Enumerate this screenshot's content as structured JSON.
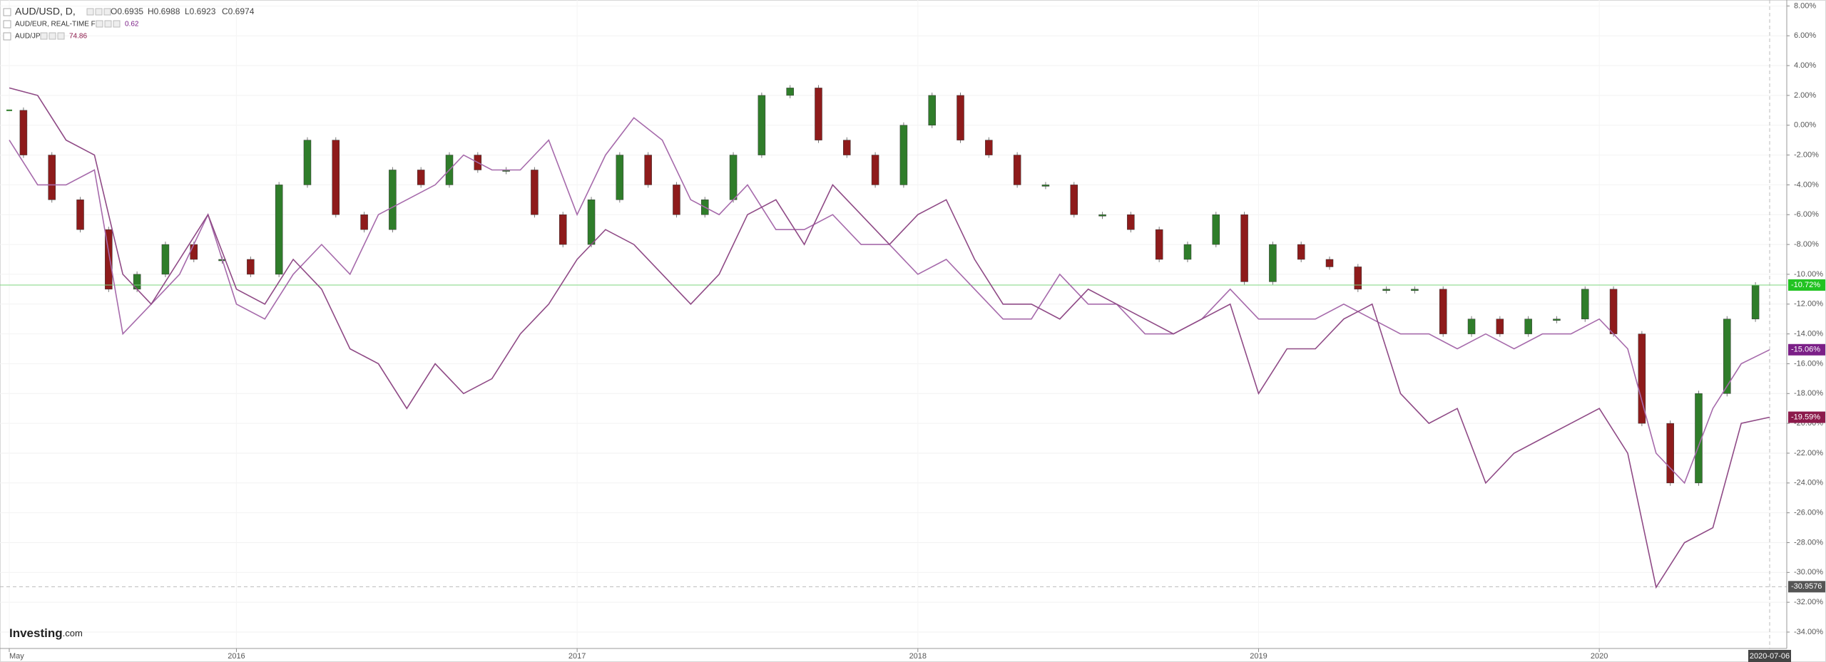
{
  "chart_data": {
    "type": "line",
    "brand": [
      "Investing",
      ".com"
    ],
    "x": [
      "2015-05",
      "2015-06",
      "2015-07",
      "2015-08",
      "2015-09",
      "2015-10",
      "2015-11",
      "2015-12",
      "2016-01",
      "2016-02",
      "2016-03",
      "2016-04",
      "2016-05",
      "2016-06",
      "2016-07",
      "2016-08",
      "2016-09",
      "2016-10",
      "2016-11",
      "2016-12",
      "2017-01",
      "2017-02",
      "2017-03",
      "2017-04",
      "2017-05",
      "2017-06",
      "2017-07",
      "2017-08",
      "2017-09",
      "2017-10",
      "2017-11",
      "2017-12",
      "2018-01",
      "2018-02",
      "2018-03",
      "2018-04",
      "2018-05",
      "2018-06",
      "2018-07",
      "2018-08",
      "2018-09",
      "2018-10",
      "2018-11",
      "2018-12",
      "2019-01",
      "2019-02",
      "2019-03",
      "2019-04",
      "2019-05",
      "2019-06",
      "2019-07",
      "2019-08",
      "2019-09",
      "2019-10",
      "2019-11",
      "2019-12",
      "2020-01",
      "2020-02",
      "2020-03",
      "2020-04",
      "2020-05",
      "2020-06",
      "2020-07"
    ],
    "xlim": [
      "2015-05",
      "2020-07"
    ],
    "xticks": [
      {
        "value": "2015-05",
        "label": "May"
      },
      {
        "value": "2016-01",
        "label": "2016"
      },
      {
        "value": "2017-01",
        "label": "2017"
      },
      {
        "value": "2018-01",
        "label": "2018"
      },
      {
        "value": "2019-01",
        "label": "2019"
      },
      {
        "value": "2020-01",
        "label": "2020"
      }
    ],
    "crosshair_x": {
      "value": "2020-07",
      "label": "2020-07-06"
    },
    "crosshair_y": -30.9576,
    "ylim": [
      -35.1,
      8.4
    ],
    "yticks": [
      {
        "value": 8,
        "label": "8.00%"
      },
      {
        "value": 6,
        "label": "6.00%"
      },
      {
        "value": 4,
        "label": "4.00%"
      },
      {
        "value": 2,
        "label": "2.00%"
      },
      {
        "value": 0,
        "label": "0.00%"
      },
      {
        "value": -2,
        "label": "-2.00%"
      },
      {
        "value": -4,
        "label": "-4.00%"
      },
      {
        "value": -6,
        "label": "-6.00%"
      },
      {
        "value": -8,
        "label": "-8.00%"
      },
      {
        "value": -10,
        "label": "-10.00%"
      },
      {
        "value": -12,
        "label": "-12.00%"
      },
      {
        "value": -14,
        "label": "-14.00%"
      },
      {
        "value": -16,
        "label": "-16.00%"
      },
      {
        "value": -18,
        "label": "-18.00%"
      },
      {
        "value": -20,
        "label": "-20.00%"
      },
      {
        "value": -22,
        "label": "-22.00%"
      },
      {
        "value": -24,
        "label": "-24.00%"
      },
      {
        "value": -26,
        "label": "-26.00%"
      },
      {
        "value": -28,
        "label": "-28.00%"
      },
      {
        "value": -30,
        "label": "-30.00%"
      },
      {
        "value": -32,
        "label": "-32.00%"
      },
      {
        "value": -34,
        "label": "-34.00%"
      }
    ],
    "grid": true,
    "series": [
      {
        "name": "AUD/USD, D,",
        "style": "candlestick",
        "color": "#2f7d2a",
        "down_color": "#8e1b1b",
        "label_color": "#22c322",
        "ohlc_labels": [
          "O0.6935",
          "H0.6988",
          "L0.6923",
          "C0.6974"
        ],
        "last_label": "-10.72%",
        "values": [
          1,
          -2,
          -5,
          -7,
          -11,
          -10,
          -8,
          -9,
          -9,
          -10,
          -4,
          -1,
          -6,
          -7,
          -3,
          -4,
          -2,
          -3,
          -3,
          -6,
          -8,
          -5,
          -2,
          -4,
          -6,
          -5,
          -2,
          2,
          2.5,
          -1,
          -2,
          -4,
          0,
          2,
          -1,
          -2,
          -4,
          -4,
          -6,
          -6,
          -7,
          -9,
          -8,
          -6,
          -10.5,
          -8,
          -9,
          -9.5,
          -11,
          -11,
          -11,
          -14,
          -13,
          -14,
          -13,
          -13,
          -11,
          -14,
          -20,
          -24,
          -18,
          -13,
          -10.72
        ]
      },
      {
        "name": "AUD/EUR, REAL-TIME FX",
        "style": "line",
        "color": "#a66aab",
        "label_color": "#7b1f87",
        "legend_value": "0.62",
        "last_label": "-15.06%",
        "values": [
          -1,
          -4,
          -4,
          -3,
          -14,
          -12,
          -10,
          -6,
          -12,
          -13,
          -10,
          -8,
          -10,
          -6,
          -5,
          -4,
          -2,
          -3,
          -3,
          -1,
          -6,
          -2,
          0.5,
          -1,
          -5,
          -6,
          -4,
          -7,
          -7,
          -6,
          -8,
          -8,
          -10,
          -9,
          -11,
          -13,
          -13,
          -10,
          -12,
          -12,
          -14,
          -14,
          -13,
          -11,
          -13,
          -13,
          -13,
          -12,
          -13,
          -14,
          -14,
          -15,
          -14,
          -15,
          -14,
          -14,
          -13,
          -15,
          -22,
          -24,
          -19,
          -16,
          -15.06
        ]
      },
      {
        "name": "AUD/JPY,",
        "style": "line",
        "color": "#8f4a86",
        "label_color": "#8c1a4b",
        "legend_value": "74.86",
        "last_label": "-19.59%",
        "values": [
          2.5,
          2,
          -1,
          -2,
          -10,
          -12,
          -9,
          -6,
          -11,
          -12,
          -9,
          -11,
          -15,
          -16,
          -19,
          -16,
          -18,
          -17,
          -14,
          -12,
          -9,
          -7,
          -8,
          -10,
          -12,
          -10,
          -6,
          -5,
          -8,
          -4,
          -6,
          -8,
          -6,
          -5,
          -9,
          -12,
          -12,
          -13,
          -11,
          -12,
          -13,
          -14,
          -13,
          -12,
          -18,
          -15,
          -15,
          -13,
          -12,
          -18,
          -20,
          -19,
          -24,
          -22,
          -21,
          -20,
          -19,
          -22,
          -31,
          -28,
          -27,
          -20,
          -19.59
        ]
      }
    ]
  }
}
